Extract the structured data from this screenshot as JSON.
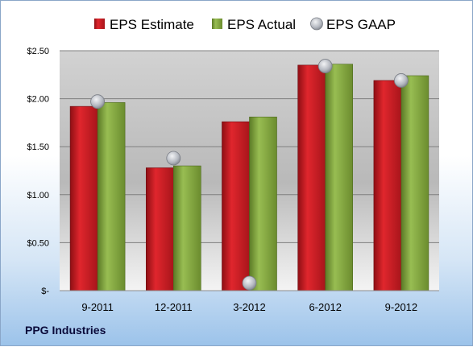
{
  "chart_data": {
    "type": "bar",
    "categories": [
      "9-2011",
      "12-2011",
      "3-2012",
      "6-2012",
      "9-2012"
    ],
    "series": [
      {
        "name": "EPS Estimate",
        "kind": "bar",
        "color": "#c81e24",
        "values": [
          1.92,
          1.28,
          1.76,
          2.35,
          2.19
        ]
      },
      {
        "name": "EPS Actual",
        "kind": "bar",
        "color": "#7ea13c",
        "values": [
          1.96,
          1.3,
          1.81,
          2.36,
          2.24
        ]
      },
      {
        "name": "EPS GAAP",
        "kind": "marker",
        "color": "#b8bcc4",
        "values": [
          1.97,
          1.38,
          0.08,
          2.34,
          2.19
        ]
      }
    ],
    "ylim": [
      0,
      2.5
    ],
    "yticks": [
      {
        "value": 0,
        "label": "$-"
      },
      {
        "value": 0.5,
        "label": "$0.50"
      },
      {
        "value": 1.0,
        "label": "$1.00"
      },
      {
        "value": 1.5,
        "label": "$1.50"
      },
      {
        "value": 2.0,
        "label": "$2.00"
      },
      {
        "value": 2.5,
        "label": "$2.50"
      }
    ],
    "grid": true,
    "legend_position": "top"
  },
  "company": "PPG Industries"
}
